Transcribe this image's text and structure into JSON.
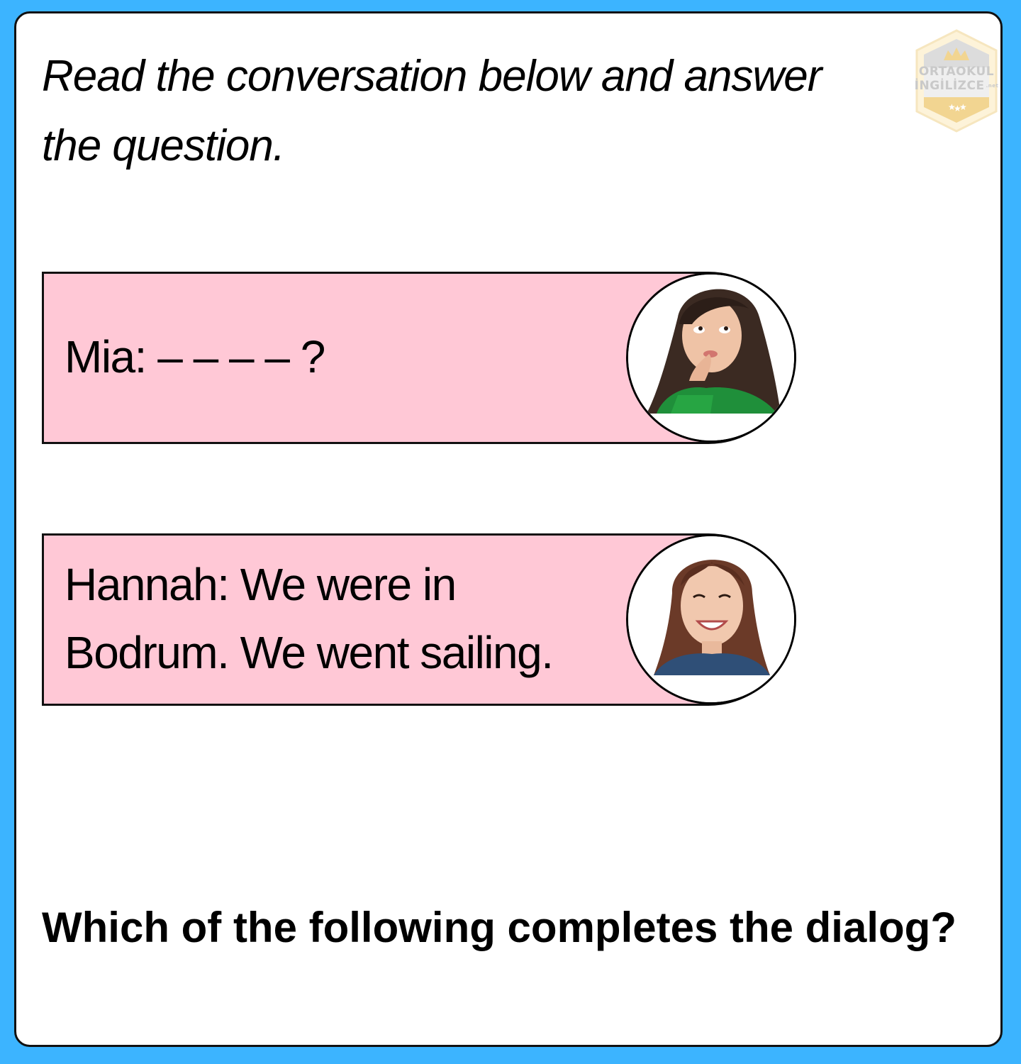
{
  "instruction": "Read the conversation below and answer the question.",
  "logo": {
    "line1": "ORTAOKUL",
    "line2": "İNGİLİZCE",
    "suffix": ".net",
    "colors": {
      "outer": "#fdf3d9",
      "inner": "#eeeeee",
      "gold": "#f2d591",
      "text": "#c9c9c9"
    }
  },
  "dialog": [
    {
      "speaker": "Mia",
      "text": "Mia: – – – – ?",
      "avatar": "woman-thinking-avatar"
    },
    {
      "speaker": "Hannah",
      "text": "Hannah: We were in Bodrum. We went sailing.",
      "avatar": "woman-smiling-avatar"
    }
  ],
  "question": "Which of the following completes the dialog?",
  "colors": {
    "background": "#3cb4ff",
    "card": "#ffffff",
    "bubble": "#ffc8d6",
    "border": "#111111"
  }
}
